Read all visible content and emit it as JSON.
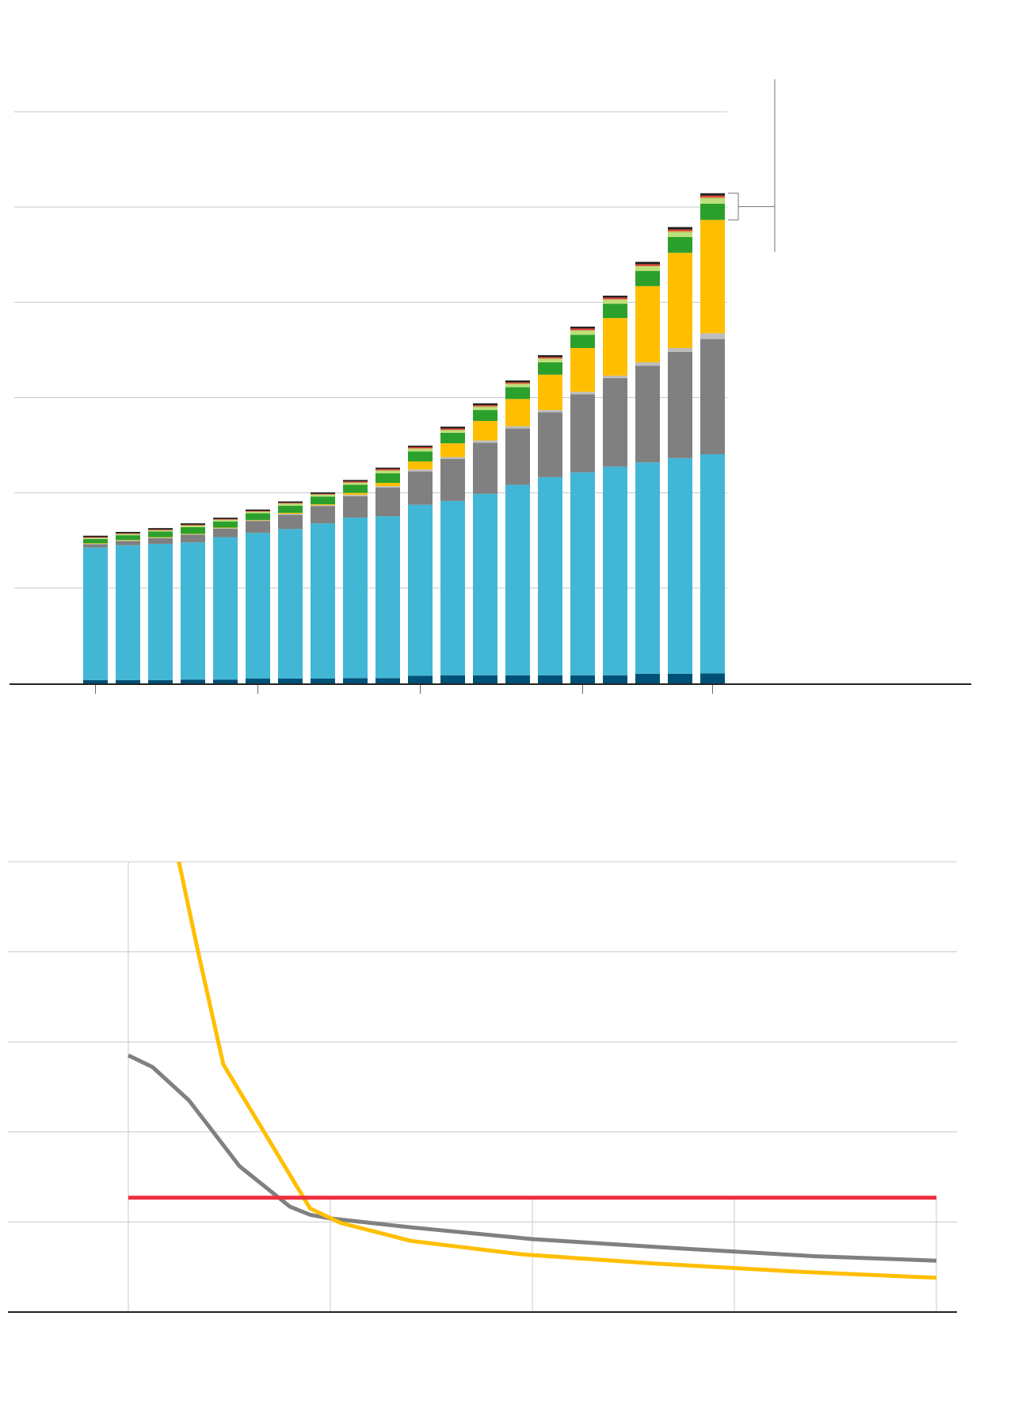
{
  "colors": {
    "dark_blue": "#005177",
    "light_blue": "#42b7d5",
    "gray": "#808080",
    "light_gray": "#bdbdbd",
    "yellow": "#ffbf00",
    "green": "#2ca02c",
    "light_green": "#bde17a",
    "tan": "#c9a24a",
    "red": "#e03030",
    "black": "#222222",
    "gridline": "#c8c8c8",
    "red_line": "#ee2f3d"
  },
  "chart_data": [
    {
      "type": "bar",
      "stacked": true,
      "ylim": [
        0,
        12
      ],
      "gridlines": [
        2,
        4,
        6,
        8,
        10,
        12
      ],
      "legend": "none",
      "segment_colors": [
        "dark_blue",
        "light_blue",
        "gray",
        "light_gray",
        "yellow",
        "green",
        "light_green",
        "tan",
        "red",
        "black"
      ],
      "bars": [
        [
          0.07,
          2.78,
          0.07,
          0.01,
          0.01,
          0.09,
          0.02,
          0.01,
          0.01,
          0.03
        ],
        [
          0.07,
          2.83,
          0.09,
          0.01,
          0.01,
          0.1,
          0.02,
          0.01,
          0.01,
          0.03
        ],
        [
          0.07,
          2.86,
          0.12,
          0.01,
          0.01,
          0.12,
          0.02,
          0.01,
          0.01,
          0.03
        ],
        [
          0.08,
          2.88,
          0.16,
          0.01,
          0.01,
          0.14,
          0.03,
          0.01,
          0.01,
          0.03
        ],
        [
          0.08,
          2.99,
          0.18,
          0.01,
          0.01,
          0.13,
          0.03,
          0.01,
          0.01,
          0.03
        ],
        [
          0.1,
          3.06,
          0.25,
          0.01,
          0.01,
          0.14,
          0.03,
          0.01,
          0.01,
          0.03
        ],
        [
          0.1,
          3.14,
          0.3,
          0.02,
          0.02,
          0.15,
          0.04,
          0.01,
          0.01,
          0.03
        ],
        [
          0.1,
          3.26,
          0.36,
          0.02,
          0.02,
          0.16,
          0.04,
          0.01,
          0.01,
          0.03
        ],
        [
          0.11,
          3.37,
          0.45,
          0.03,
          0.04,
          0.17,
          0.04,
          0.01,
          0.02,
          0.03
        ],
        [
          0.11,
          3.4,
          0.6,
          0.03,
          0.07,
          0.2,
          0.05,
          0.02,
          0.02,
          0.03
        ],
        [
          0.16,
          3.59,
          0.7,
          0.04,
          0.17,
          0.21,
          0.05,
          0.02,
          0.02,
          0.03
        ],
        [
          0.17,
          3.66,
          0.88,
          0.04,
          0.29,
          0.22,
          0.05,
          0.02,
          0.02,
          0.04
        ],
        [
          0.17,
          3.81,
          1.07,
          0.05,
          0.41,
          0.23,
          0.06,
          0.02,
          0.02,
          0.04
        ],
        [
          0.17,
          4.0,
          1.18,
          0.05,
          0.57,
          0.25,
          0.06,
          0.02,
          0.02,
          0.04
        ],
        [
          0.17,
          4.16,
          1.36,
          0.05,
          0.74,
          0.26,
          0.07,
          0.02,
          0.02,
          0.04
        ],
        [
          0.17,
          4.26,
          1.64,
          0.05,
          0.92,
          0.28,
          0.08,
          0.02,
          0.03,
          0.04
        ],
        [
          0.17,
          4.38,
          1.86,
          0.05,
          1.21,
          0.3,
          0.08,
          0.02,
          0.03,
          0.04
        ],
        [
          0.2,
          4.44,
          2.03,
          0.07,
          1.6,
          0.32,
          0.09,
          0.02,
          0.03,
          0.05
        ],
        [
          0.2,
          4.53,
          2.23,
          0.08,
          2.0,
          0.33,
          0.1,
          0.03,
          0.03,
          0.05
        ],
        [
          0.21,
          4.6,
          2.42,
          0.12,
          2.38,
          0.34,
          0.11,
          0.03,
          0.03,
          0.05
        ]
      ]
    },
    {
      "type": "line",
      "xlim": [
        0,
        4
      ],
      "ylim": [
        0,
        5
      ],
      "gridlines": [
        1,
        2,
        3,
        4,
        5
      ],
      "vertical_gridlines": [
        0,
        1,
        2,
        3,
        4
      ],
      "legend": "none",
      "series": [
        {
          "color": "gray",
          "x": [
            0,
            0.12,
            0.3,
            0.55,
            0.8,
            0.9,
            1.0,
            1.4,
            2.0,
            2.7,
            3.4,
            4.0
          ],
          "y": [
            2.85,
            2.72,
            2.35,
            1.62,
            1.17,
            1.08,
            1.04,
            0.94,
            0.81,
            0.71,
            0.62,
            0.57
          ]
        },
        {
          "color": "yellow",
          "x": [
            0.25,
            0.35,
            0.47,
            0.72,
            0.9,
            1.05,
            1.4,
            1.95,
            2.6,
            3.3,
            4.0
          ],
          "y": [
            5.0,
            3.95,
            2.75,
            1.82,
            1.15,
            0.99,
            0.79,
            0.64,
            0.54,
            0.45,
            0.38
          ]
        },
        {
          "color": "red_line",
          "x": [
            0,
            4
          ],
          "y": [
            1.27,
            1.27
          ]
        }
      ]
    }
  ]
}
